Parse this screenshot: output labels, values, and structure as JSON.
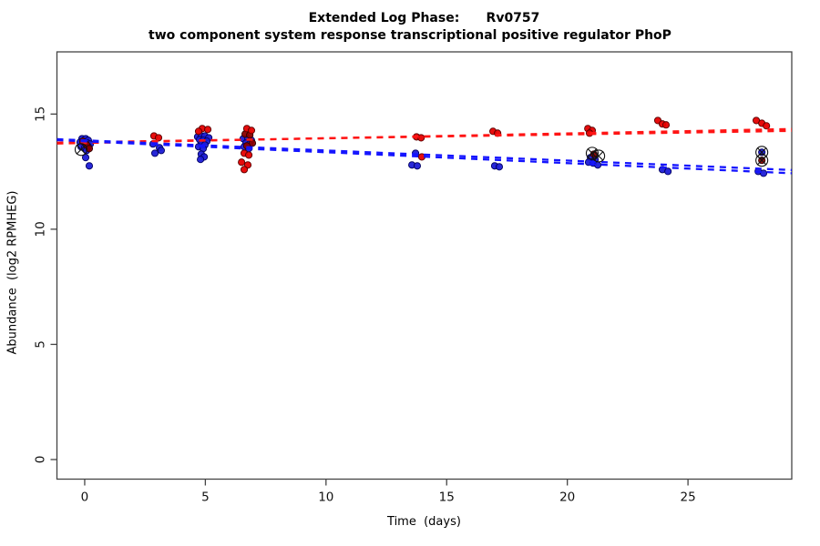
{
  "chart_data": {
    "type": "scatter",
    "title": "Extended Log Phase:      Rv0757",
    "subtitle": "two component system response transcriptional positive regulator PhoP",
    "xlabel": "Time  (days)",
    "ylabel": "Abundance  (log2 RPMHEG)",
    "xlim": [
      -1.15,
      29.3
    ],
    "ylim": [
      -0.85,
      17.7
    ],
    "x_ticks": [
      0,
      5,
      10,
      15,
      20,
      25
    ],
    "y_ticks": [
      0,
      5,
      10,
      15
    ],
    "grid": false,
    "legend": "none",
    "axis_color": "#444444",
    "series": [
      {
        "name": "blue-points",
        "marker": "circle",
        "color": "#1c1cd6",
        "edge_color": "#000060",
        "points": [
          [
            -0.11,
            13.93
          ],
          [
            0.04,
            13.93
          ],
          [
            0.15,
            13.86
          ],
          [
            -0.19,
            13.78
          ],
          [
            -0.04,
            13.74
          ],
          [
            0.11,
            13.74
          ],
          [
            0.23,
            13.7
          ],
          [
            -0.15,
            13.58
          ],
          [
            0.0,
            13.54
          ],
          [
            0.15,
            13.58
          ],
          [
            0.08,
            13.42
          ],
          [
            0.04,
            13.11
          ],
          [
            0.19,
            12.75
          ],
          [
            2.83,
            13.7
          ],
          [
            3.1,
            13.54
          ],
          [
            2.91,
            13.3
          ],
          [
            3.17,
            13.42
          ],
          [
            4.68,
            14.01
          ],
          [
            4.83,
            14.05
          ],
          [
            4.98,
            14.05
          ],
          [
            5.14,
            13.97
          ],
          [
            4.76,
            13.89
          ],
          [
            4.91,
            13.86
          ],
          [
            5.06,
            13.82
          ],
          [
            4.83,
            13.7
          ],
          [
            4.98,
            13.66
          ],
          [
            4.72,
            13.58
          ],
          [
            4.91,
            13.5
          ],
          [
            4.83,
            13.26
          ],
          [
            4.95,
            13.14
          ],
          [
            4.8,
            13.03
          ],
          [
            6.57,
            13.93
          ],
          [
            6.76,
            13.93
          ],
          [
            6.91,
            13.86
          ],
          [
            6.68,
            13.74
          ],
          [
            6.84,
            13.7
          ],
          [
            6.61,
            13.58
          ],
          [
            6.8,
            13.5
          ],
          [
            13.71,
            13.3
          ],
          [
            13.56,
            12.79
          ],
          [
            13.78,
            12.75
          ],
          [
            16.99,
            12.75
          ],
          [
            17.18,
            12.71
          ],
          [
            20.96,
            13.11
          ],
          [
            21.15,
            13.03
          ],
          [
            20.88,
            12.91
          ],
          [
            21.07,
            12.87
          ],
          [
            21.26,
            12.79
          ],
          [
            23.94,
            12.59
          ],
          [
            24.17,
            12.51
          ],
          [
            28.06,
            13.34
          ],
          [
            27.91,
            12.51
          ],
          [
            28.13,
            12.43
          ]
        ]
      },
      {
        "name": "dark-red-points",
        "marker": "circle",
        "color": "#8b0000",
        "edge_color": "#2e0000",
        "points": [
          [
            -0.08,
            13.82
          ],
          [
            0.08,
            13.66
          ],
          [
            0.19,
            13.5
          ],
          [
            6.65,
            14.13
          ],
          [
            6.84,
            14.09
          ],
          [
            6.95,
            13.74
          ],
          [
            6.72,
            13.62
          ],
          [
            21.1,
            13.26
          ],
          [
            28.06,
            12.99
          ]
        ]
      },
      {
        "name": "red-points",
        "marker": "circle",
        "color": "#e60000",
        "edge_color": "#5a0000",
        "points": [
          [
            2.87,
            14.05
          ],
          [
            3.06,
            13.97
          ],
          [
            4.87,
            14.37
          ],
          [
            5.1,
            14.33
          ],
          [
            4.72,
            14.25
          ],
          [
            6.72,
            14.37
          ],
          [
            6.91,
            14.29
          ],
          [
            6.61,
            13.3
          ],
          [
            6.8,
            13.22
          ],
          [
            6.5,
            12.91
          ],
          [
            6.76,
            12.79
          ],
          [
            6.61,
            12.59
          ],
          [
            13.75,
            14.01
          ],
          [
            13.94,
            13.97
          ],
          [
            13.97,
            13.14
          ],
          [
            16.92,
            14.25
          ],
          [
            17.11,
            14.17
          ],
          [
            20.85,
            14.37
          ],
          [
            21.03,
            14.29
          ],
          [
            20.92,
            14.17
          ],
          [
            23.75,
            14.72
          ],
          [
            23.94,
            14.57
          ],
          [
            24.09,
            14.53
          ],
          [
            27.83,
            14.72
          ],
          [
            28.06,
            14.6
          ],
          [
            28.25,
            14.49
          ]
        ]
      }
    ],
    "fit_lines": [
      {
        "name": "red-fit-a",
        "color": "#ff1414",
        "style": "dashed",
        "x1": -1.15,
        "y1": 13.76,
        "x2": 29.3,
        "y2": 14.27
      },
      {
        "name": "red-fit-b",
        "color": "#ff1414",
        "style": "dashed",
        "x1": -1.15,
        "y1": 13.72,
        "x2": 29.3,
        "y2": 14.35
      },
      {
        "name": "blue-fit-a",
        "color": "#1414ff",
        "style": "dashed",
        "x1": -1.15,
        "y1": 13.91,
        "x2": 29.3,
        "y2": 12.57
      },
      {
        "name": "blue-fit-b",
        "color": "#1414ff",
        "style": "dashed",
        "x1": -1.15,
        "y1": 13.87,
        "x2": 29.3,
        "y2": 12.43
      }
    ],
    "flagged_points": {
      "marker": "circle-cross",
      "color": "#111111",
      "points": [
        [
          -0.15,
          13.46
        ],
        [
          21.03,
          13.3
        ],
        [
          21.3,
          13.18
        ],
        [
          28.06,
          13.34
        ],
        [
          28.06,
          12.99
        ]
      ]
    }
  }
}
